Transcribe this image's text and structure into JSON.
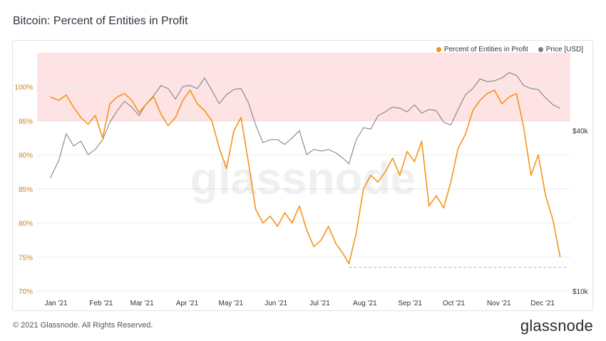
{
  "page": {
    "title": "Bitcoin: Percent of Entities in Profit",
    "footer": "© 2021 Glassnode. All Rights Reserved.",
    "brand": "glassnode",
    "watermark": "glassnode"
  },
  "colors": {
    "profit": "#f7931a",
    "price": "#7a7a7a",
    "band": "#fde3e3",
    "bandLine": "#e88a8a",
    "dashed": "#8fc0d9",
    "axisLeft": "#c98515"
  },
  "chart_data": {
    "type": "line",
    "title": "Bitcoin: Percent of Entities in Profit",
    "legend_position": "top-right",
    "x_labels": [
      "Jan '21",
      "Feb '21",
      "Mar '21",
      "Apr '21",
      "May '21",
      "Jun '21",
      "Jul '21",
      "Aug '21",
      "Sep '21",
      "Oct '21",
      "Nov '21",
      "Dec '21"
    ],
    "y_left": {
      "ticks": [
        "70%",
        "75%",
        "80%",
        "85%",
        "90%",
        "95%",
        "100%"
      ],
      "range": [
        70,
        105
      ]
    },
    "y_right": {
      "ticks": [
        "$10k",
        "$40k"
      ],
      "scale": "log"
    },
    "highlight_band": {
      "from": 95,
      "to": 105
    },
    "reference_line": {
      "value": 73.5,
      "style": "dashed",
      "from_date": "2021-07-21"
    },
    "series": [
      {
        "name": "Percent of Entities in Profit",
        "axis": "left",
        "x": [
          "2020-12-28",
          "2021-01-03",
          "2021-01-08",
          "2021-01-13",
          "2021-01-18",
          "2021-01-23",
          "2021-01-28",
          "2021-02-02",
          "2021-02-07",
          "2021-02-12",
          "2021-02-17",
          "2021-02-22",
          "2021-02-27",
          "2021-03-04",
          "2021-03-09",
          "2021-03-14",
          "2021-03-19",
          "2021-03-24",
          "2021-03-29",
          "2021-04-03",
          "2021-04-08",
          "2021-04-13",
          "2021-04-18",
          "2021-04-23",
          "2021-04-28",
          "2021-05-03",
          "2021-05-08",
          "2021-05-13",
          "2021-05-18",
          "2021-05-23",
          "2021-05-28",
          "2021-06-02",
          "2021-06-07",
          "2021-06-12",
          "2021-06-17",
          "2021-06-22",
          "2021-06-27",
          "2021-07-02",
          "2021-07-07",
          "2021-07-12",
          "2021-07-17",
          "2021-07-21",
          "2021-07-26",
          "2021-07-31",
          "2021-08-05",
          "2021-08-10",
          "2021-08-15",
          "2021-08-20",
          "2021-08-25",
          "2021-08-30",
          "2021-09-04",
          "2021-09-09",
          "2021-09-14",
          "2021-09-19",
          "2021-09-24",
          "2021-09-29",
          "2021-10-04",
          "2021-10-09",
          "2021-10-14",
          "2021-10-19",
          "2021-10-24",
          "2021-10-29",
          "2021-11-03",
          "2021-11-08",
          "2021-11-13",
          "2021-11-18",
          "2021-11-23",
          "2021-11-28",
          "2021-12-03",
          "2021-12-08",
          "2021-12-13"
        ],
        "y": [
          98.5,
          98,
          98.8,
          97,
          95.5,
          94.5,
          95.8,
          92.5,
          97.5,
          98.5,
          99,
          98,
          96.2,
          97.5,
          98.5,
          96,
          94.3,
          95.5,
          98,
          99.5,
          97.5,
          96.5,
          95,
          91,
          88,
          93.5,
          95.5,
          89,
          82,
          80,
          81,
          79.5,
          81.5,
          80,
          82.5,
          79,
          76.5,
          77.5,
          79.5,
          77,
          75.5,
          74,
          78.5,
          85,
          87,
          86,
          87.5,
          89.5,
          87,
          90.5,
          89,
          92,
          82.5,
          84,
          82.2,
          86,
          91,
          93,
          96.5,
          98,
          99,
          99.5,
          97.5,
          98.5,
          99,
          94,
          87,
          90,
          84,
          80.5,
          75
        ]
      },
      {
        "name": "Price [USD]",
        "axis": "right",
        "x": [
          "2020-12-28",
          "2021-01-03",
          "2021-01-08",
          "2021-01-13",
          "2021-01-18",
          "2021-01-23",
          "2021-01-28",
          "2021-02-02",
          "2021-02-07",
          "2021-02-12",
          "2021-02-17",
          "2021-02-22",
          "2021-02-27",
          "2021-03-04",
          "2021-03-09",
          "2021-03-14",
          "2021-03-19",
          "2021-03-24",
          "2021-03-29",
          "2021-04-03",
          "2021-04-08",
          "2021-04-13",
          "2021-04-18",
          "2021-04-23",
          "2021-04-28",
          "2021-05-03",
          "2021-05-08",
          "2021-05-13",
          "2021-05-18",
          "2021-05-23",
          "2021-05-28",
          "2021-06-02",
          "2021-06-07",
          "2021-06-12",
          "2021-06-17",
          "2021-06-22",
          "2021-06-27",
          "2021-07-02",
          "2021-07-07",
          "2021-07-12",
          "2021-07-17",
          "2021-07-21",
          "2021-07-26",
          "2021-07-31",
          "2021-08-05",
          "2021-08-10",
          "2021-08-15",
          "2021-08-20",
          "2021-08-25",
          "2021-08-30",
          "2021-09-04",
          "2021-09-09",
          "2021-09-14",
          "2021-09-19",
          "2021-09-24",
          "2021-09-29",
          "2021-10-04",
          "2021-10-09",
          "2021-10-14",
          "2021-10-19",
          "2021-10-24",
          "2021-10-29",
          "2021-11-03",
          "2021-11-08",
          "2021-11-13",
          "2021-11-18",
          "2021-11-23",
          "2021-11-28",
          "2021-12-03",
          "2021-12-08",
          "2021-12-13"
        ],
        "y": [
          26500,
          31000,
          39000,
          35000,
          36500,
          32500,
          34000,
          37000,
          43000,
          47500,
          51500,
          49000,
          45500,
          50500,
          54000,
          59000,
          57500,
          52500,
          58500,
          59000,
          57500,
          63000,
          56500,
          50500,
          54500,
          57000,
          57500,
          51000,
          42000,
          36000,
          37000,
          37000,
          35500,
          37500,
          40000,
          32500,
          34000,
          33500,
          34000,
          33000,
          31500,
          30000,
          37000,
          41000,
          40500,
          45500,
          47000,
          49000,
          48500,
          47000,
          50000,
          46500,
          48000,
          47500,
          43000,
          42000,
          48000,
          54500,
          57500,
          62500,
          61000,
          61500,
          63000,
          66000,
          64500,
          59000,
          57500,
          57000,
          53000,
          50000,
          48500
        ]
      }
    ]
  }
}
